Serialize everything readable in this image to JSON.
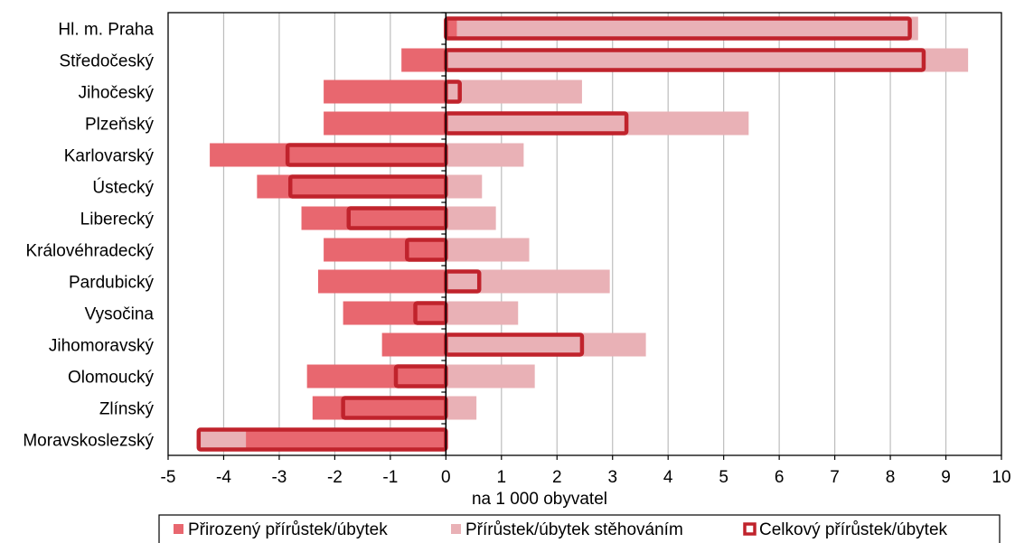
{
  "chart_data": {
    "type": "bar",
    "orientation": "horizontal",
    "title": "",
    "xlabel": "na 1 000 obyvatel",
    "ylabel": "",
    "xlim": [
      -5,
      10
    ],
    "x_ticks": [
      "-5",
      "-4",
      "-3",
      "-2",
      "-1",
      "0",
      "1",
      "2",
      "3",
      "4",
      "5",
      "6",
      "7",
      "8",
      "9",
      "10"
    ],
    "grid": "vertical",
    "legend_position": "bottom",
    "categories": [
      "Hl. m. Praha",
      "Středočeský",
      "Jihočeský",
      "Plzeňský",
      "Karlovarský",
      "Ústecký",
      "Liberecký",
      "Královéhradecký",
      "Pardubický",
      "Vysočina",
      "Jihomoravský",
      "Olomoucký",
      "Zlínský",
      "Moravskoslezský"
    ],
    "series": [
      {
        "name": "Přirozený přírůstek/úbytek",
        "color": "#e8676f",
        "values": [
          0.2,
          -0.8,
          -2.2,
          -2.2,
          -4.25,
          -3.4,
          -2.6,
          -2.2,
          -2.3,
          -1.85,
          -1.15,
          -2.5,
          -2.4,
          -3.6
        ]
      },
      {
        "name": "Přírůstek/úbytek stěhováním",
        "color": "#e9b1b6",
        "values": [
          8.3,
          9.4,
          2.45,
          5.45,
          1.4,
          0.65,
          0.9,
          1.5,
          2.95,
          1.3,
          3.6,
          1.6,
          0.55,
          -0.85
        ]
      },
      {
        "name": "Celkový přírůstek/úbytek",
        "color": "#c0232c",
        "values": [
          8.35,
          8.6,
          0.25,
          3.25,
          -2.85,
          -2.8,
          -1.75,
          -0.7,
          0.6,
          -0.55,
          2.45,
          -0.9,
          -1.85,
          -4.45
        ]
      }
    ]
  }
}
